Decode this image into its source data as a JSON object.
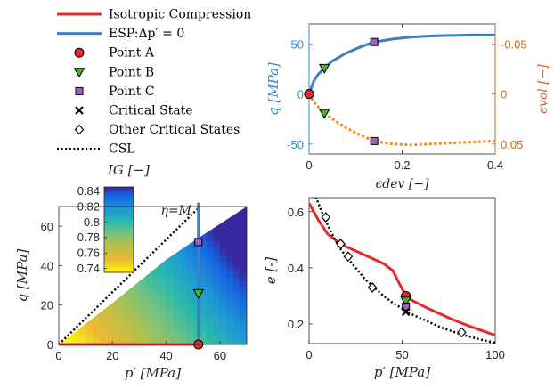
{
  "colors": {
    "isotropic": "#e32b2b",
    "esp": "#3f7fbf",
    "volumetric": "#ef8c1a",
    "vol_axis": "#e0601a",
    "q_axis": "#2b8fd6",
    "pointA": "#e32b2b",
    "pointB": "#4caf2a",
    "pointC": "#a45bc8",
    "csl": "#000000"
  },
  "legend": {
    "items": [
      {
        "label": "Isotropic Compression",
        "kind": "line-red"
      },
      {
        "label": "ESP:Δp′ = 0",
        "kind": "line-blue"
      },
      {
        "label": "Point A",
        "kind": "circle"
      },
      {
        "label": "Point B",
        "kind": "triangle"
      },
      {
        "label": "Point C",
        "kind": "square"
      },
      {
        "label": "Critical State",
        "kind": "cross"
      },
      {
        "label": "Other Critical States",
        "kind": "diamond"
      },
      {
        "label": "CSL",
        "kind": "dotted"
      }
    ]
  },
  "chart_data": [
    {
      "id": "strain-plot",
      "type": "line",
      "xlabel": "ϵdev [−]",
      "ylabel_left": "q [MPa]",
      "ylabel_right": "ϵvol [−]",
      "xlim": [
        0,
        0.4
      ],
      "ylim_left": [
        -60,
        70
      ],
      "ylim_right": [
        0.06,
        -0.07
      ],
      "x_ticks": [
        "0",
        "0.2",
        "0.4"
      ],
      "y_ticks_left": [
        "50",
        "0",
        "-50"
      ],
      "y_ticks_right": [
        "-0.05",
        "0",
        "0.05"
      ],
      "series": [
        {
          "axis": "left",
          "x": [
            0,
            0.01,
            0.02,
            0.033,
            0.05,
            0.08,
            0.11,
            0.14,
            0.18,
            0.22,
            0.26,
            0.3,
            0.35,
            0.4
          ],
          "y": [
            0,
            13,
            20,
            26,
            33,
            41,
            47,
            52,
            55,
            57,
            58,
            58.5,
            59,
            59
          ]
        },
        {
          "axis": "right",
          "x": [
            0,
            0.01,
            0.02,
            0.033,
            0.05,
            0.08,
            0.11,
            0.14,
            0.18,
            0.22,
            0.26,
            0.3,
            0.35,
            0.4
          ],
          "y": [
            0,
            0.008,
            0.013,
            0.019,
            0.025,
            0.034,
            0.041,
            0.047,
            0.05,
            0.051,
            0.05,
            0.049,
            0.048,
            0.047
          ]
        }
      ],
      "markers_left": [
        {
          "name": "Point A",
          "x": 0,
          "y": 0
        },
        {
          "name": "Point B",
          "x": 0.033,
          "y": 26
        },
        {
          "name": "Point C",
          "x": 0.14,
          "y": 52
        }
      ],
      "markers_right": [
        {
          "name": "Point A",
          "x": 0,
          "y": 0
        },
        {
          "name": "Point B",
          "x": 0.033,
          "y": 0.019
        },
        {
          "name": "Point C",
          "x": 0.14,
          "y": 0.047
        }
      ]
    },
    {
      "id": "stress-plot",
      "type": "heatmap",
      "xlabel": "p′ [MPa]",
      "ylabel": "q [MPa]",
      "xlim": [
        0,
        70
      ],
      "ylim": [
        0,
        70
      ],
      "x_ticks": [
        "0",
        "20",
        "40",
        "60"
      ],
      "y_ticks": [
        "0",
        "20",
        "40",
        "60"
      ],
      "colorbar_label": "IG [−]",
      "colorbar_ticks": [
        "0.84",
        "0.82",
        "0.8",
        "0.78",
        "0.76",
        "0.74"
      ],
      "colorbar_range": [
        0.735,
        0.845
      ],
      "annotation": "η=M",
      "csl_slope": 1.33,
      "isotropic": {
        "x": [
          0,
          52
        ],
        "y": [
          0,
          0
        ]
      },
      "esp": {
        "x": [
          52,
          52
        ],
        "y": [
          0,
          72
        ]
      },
      "points": [
        {
          "name": "Point A",
          "x": 52,
          "y": 0
        },
        {
          "name": "Point B",
          "x": 52,
          "y": 26
        },
        {
          "name": "Point C",
          "x": 52,
          "y": 52
        }
      ]
    },
    {
      "id": "void-plot",
      "type": "line",
      "xlabel": "p′ [MPa]",
      "ylabel": "e [-]",
      "xlim": [
        0,
        100
      ],
      "ylim": [
        0.13,
        0.65
      ],
      "x_ticks": [
        "0",
        "50",
        "100"
      ],
      "y_ticks": [
        "0.6",
        "0.4",
        "0.2"
      ],
      "isotropic": {
        "x": [
          0,
          5,
          10,
          15,
          20,
          25,
          30,
          35,
          40,
          45,
          48,
          52,
          55,
          60,
          65,
          70,
          75,
          80,
          85,
          90,
          95,
          100
        ],
        "y": [
          0.63,
          0.57,
          0.52,
          0.495,
          0.475,
          0.46,
          0.445,
          0.43,
          0.415,
          0.39,
          0.35,
          0.3,
          0.285,
          0.268,
          0.252,
          0.237,
          0.222,
          0.208,
          0.195,
          0.183,
          0.171,
          0.16
        ]
      },
      "csl": {
        "x": [
          2,
          5,
          8,
          12,
          16,
          20,
          25,
          30,
          35,
          40,
          45,
          50,
          55,
          60,
          65,
          70,
          75,
          80,
          85,
          90,
          95,
          100
        ],
        "y": [
          0.68,
          0.63,
          0.58,
          0.525,
          0.475,
          0.44,
          0.4,
          0.36,
          0.33,
          0.3,
          0.275,
          0.255,
          0.235,
          0.22,
          0.205,
          0.19,
          0.178,
          0.167,
          0.157,
          0.148,
          0.14,
          0.133
        ]
      },
      "points": [
        {
          "name": "Point A",
          "x": 52,
          "y": 0.3
        },
        {
          "name": "Point B",
          "x": 52,
          "y": 0.283
        },
        {
          "name": "Point C",
          "x": 52,
          "y": 0.262
        },
        {
          "name": "Critical State",
          "x": 52,
          "y": 0.243
        }
      ],
      "other_critical": [
        {
          "x": 9,
          "y": 0.58
        },
        {
          "x": 17,
          "y": 0.485
        },
        {
          "x": 21,
          "y": 0.44
        },
        {
          "x": 34,
          "y": 0.33
        },
        {
          "x": 82,
          "y": 0.17
        }
      ]
    }
  ]
}
